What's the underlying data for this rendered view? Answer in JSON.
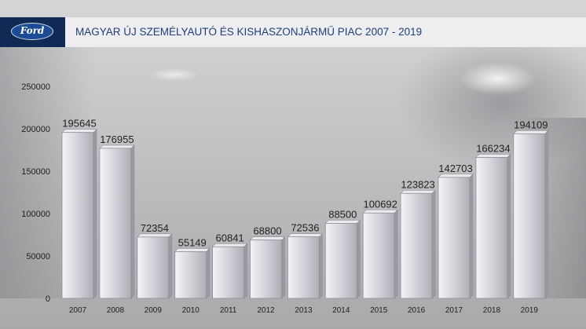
{
  "header": {
    "title": "MAGYAR ÚJ SZEMÉLYAUTÓ ÉS KISHASZONJÁRMŰ PIAC 2007 - 2019",
    "logo_text": "Ford",
    "logo_color": "#112a55",
    "title_color": "#1f3f7a"
  },
  "chart_data": {
    "type": "bar",
    "title": "MAGYAR ÚJ SZEMÉLYAUTÓ ÉS KISHASZONJÁRMŰ PIAC 2007 - 2019",
    "categories": [
      "2007",
      "2008",
      "2009",
      "2010",
      "2011",
      "2012",
      "2013",
      "2014",
      "2015",
      "2016",
      "2017",
      "2018",
      "2019"
    ],
    "values": [
      195645,
      176955,
      72354,
      55149,
      60841,
      68800,
      72536,
      88500,
      100692,
      123823,
      142703,
      166234,
      194109
    ],
    "data_labels": [
      "195645",
      "176955",
      "72354",
      "55149",
      "60841",
      "68800",
      "72536",
      "88500",
      "100692",
      "123823",
      "142703",
      "166234",
      "194109"
    ],
    "yticks": [
      "0",
      "50000",
      "100000",
      "150000",
      "200000",
      "250000"
    ],
    "ylim": [
      0,
      250000
    ],
    "xlabel": "",
    "ylabel": "",
    "grid": false,
    "legend": "none",
    "bar_color": "#d2d2d8"
  }
}
